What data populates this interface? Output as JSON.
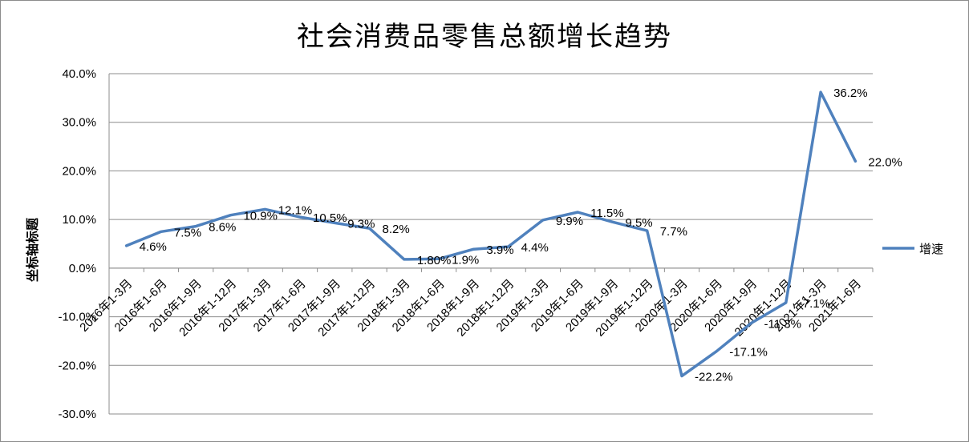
{
  "chart_data": {
    "type": "line",
    "title": "社会消费品零售总额增长趋势",
    "ylabel": "坐标轴标题",
    "xlabel": "",
    "ylim": [
      -30,
      40
    ],
    "yticks": [
      "-30.0%",
      "-20.0%",
      "-10.0%",
      "0.0%",
      "10.0%",
      "20.0%",
      "30.0%",
      "40.0%"
    ],
    "ytick_values": [
      -30,
      -20,
      -10,
      0,
      10,
      20,
      30,
      40
    ],
    "grid": true,
    "legend_position": "right",
    "line_color": "#4f81bd",
    "categories": [
      "2016年1-3月",
      "2016年1-6月",
      "2016年1-9月",
      "2016年1-12月",
      "2017年1-3月",
      "2017年1-6月",
      "2017年1-9月",
      "2017年1-12月",
      "2018年1-3月",
      "2018年1-6月",
      "2018年1-9月",
      "2018年1-12月",
      "2019年1-3月",
      "2019年1-6月",
      "2019年1-9月",
      "2019年1-12月",
      "2020年1-3月",
      "2020年1-6月",
      "2020年1-9月",
      "2020年1-12月",
      "2021年1-3月",
      "2021年1-6月"
    ],
    "series": [
      {
        "name": "增速",
        "values": [
          4.6,
          7.5,
          8.6,
          10.9,
          12.1,
          10.5,
          9.3,
          8.2,
          1.8,
          1.9,
          3.9,
          4.4,
          9.9,
          11.5,
          9.5,
          7.7,
          -22.2,
          -17.1,
          -11.3,
          -7.1,
          36.2,
          22.0
        ],
        "labels": [
          "4.6%",
          "7.5%",
          "8.6%",
          "10.9%",
          "12.1%",
          "10.5%",
          "9.3%",
          "8.2%",
          "1.80%",
          "1.9%",
          "3.9%",
          "4.4%",
          "9.9%",
          "11.5%",
          "9.5%",
          "7.7%",
          "-22.2%",
          "-17.1%",
          "-11.3%",
          "-7.1%",
          "36.2%",
          "22.0%"
        ]
      }
    ]
  }
}
